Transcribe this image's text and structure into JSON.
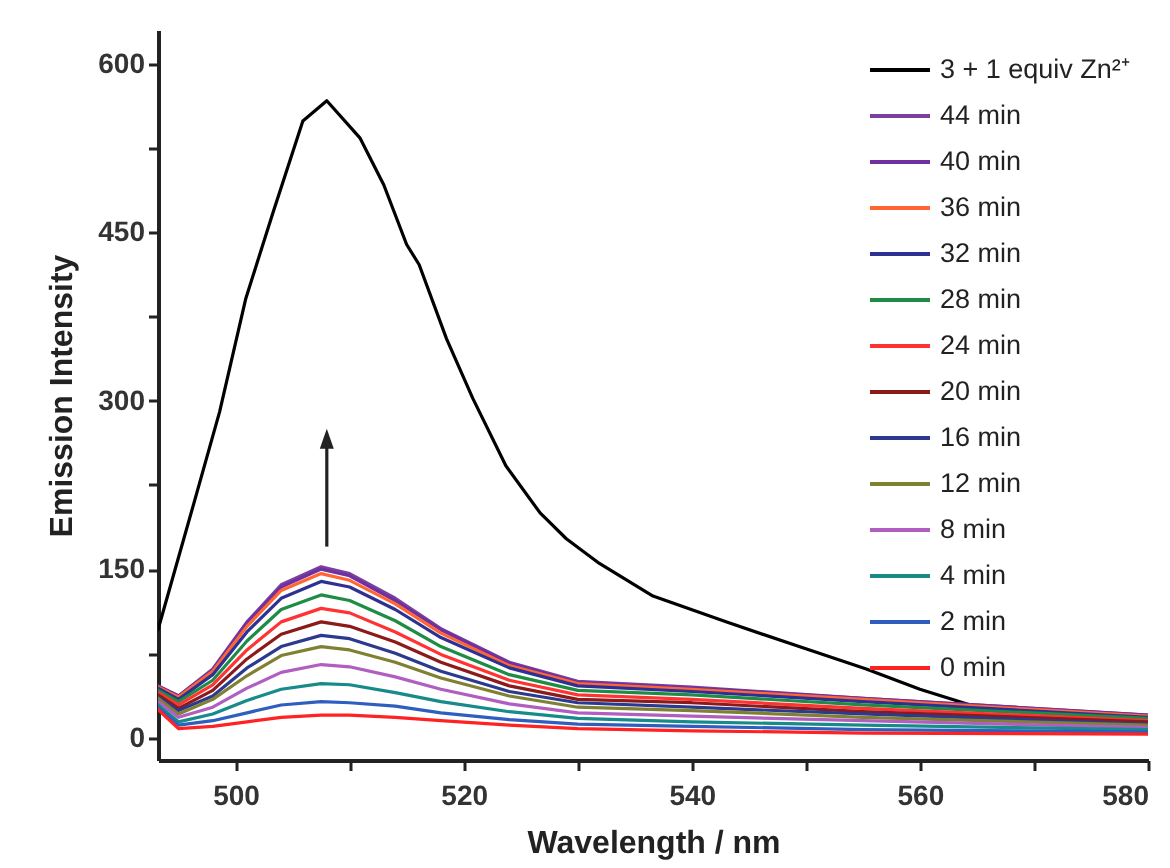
{
  "chart_data": {
    "type": "line",
    "xlabel": "Wavelength / nm",
    "ylabel": "Emission Intensity",
    "x": [
      493.2,
      495,
      498,
      501,
      504,
      507.5,
      510,
      514,
      518,
      524,
      530,
      540,
      555,
      580
    ],
    "xlim": [
      493.2,
      580
    ],
    "ylim": [
      -20,
      630
    ],
    "xticks": [
      500,
      {
        "value": 510,
        "label": null
      },
      520,
      {
        "value": 530,
        "label": null
      },
      540,
      {
        "value": 550,
        "label": null
      },
      560,
      {
        "value": 570,
        "label": null
      },
      580
    ],
    "yticks": [
      0,
      {
        "value": 75,
        "label": null
      },
      150,
      {
        "value": 225,
        "label": null
      },
      300,
      {
        "value": 375,
        "label": null
      },
      450,
      {
        "value": 525,
        "label": null
      },
      600
    ],
    "grid": false,
    "legend": "top right",
    "marker": "none",
    "line_style": "solid",
    "series": [
      {
        "name": "3  + 1 equiv Zn²⁺",
        "color": "#000000",
        "x": [
          493.2,
          496.3,
          498.6,
          500.9,
          503.3,
          505.9,
          508.0,
          510.9,
          513,
          515,
          516.1,
          518.5,
          520.8,
          523.7,
          526.7,
          529,
          531.9,
          536.6,
          543,
          550,
          555.3,
          560,
          564.7,
          569.4,
          579.3
        ],
        "values": [
          96,
          207,
          290,
          391,
          468,
          549,
          567,
          534,
          492,
          439,
          421,
          355,
          302,
          242,
          200,
          177,
          155,
          126,
          103,
          79,
          61,
          43,
          28,
          23,
          19
        ]
      },
      {
        "name": "44 min",
        "color": "#7b3f9e",
        "values": [
          46,
          37,
          61,
          103,
          136,
          152,
          146,
          124,
          97,
          67,
          50,
          45,
          35,
          20
        ]
      },
      {
        "name": "40 min",
        "color": "#7030a0",
        "values": [
          46,
          37,
          60,
          102,
          134,
          150,
          144,
          122,
          96,
          66,
          49,
          44,
          35,
          20
        ]
      },
      {
        "name": "36 min",
        "color": "#ff6633",
        "values": [
          45,
          36,
          59,
          99,
          131,
          146,
          140,
          119,
          93,
          64,
          48,
          43,
          34,
          19
        ]
      },
      {
        "name": "32 min",
        "color": "#2e3192",
        "values": [
          44,
          34,
          56,
          94,
          124,
          139,
          134,
          114,
          89,
          62,
          46,
          41,
          32,
          18
        ]
      },
      {
        "name": "28 min",
        "color": "#1e8c45",
        "values": [
          42,
          32,
          51,
          86,
          114,
          127,
          122,
          104,
          81,
          56,
          42,
          38,
          29,
          17
        ]
      },
      {
        "name": "24 min",
        "color": "#ff3333",
        "values": [
          40,
          29,
          47,
          78,
          103,
          115,
          111,
          94,
          74,
          51,
          38,
          34,
          26,
          15
        ]
      },
      {
        "name": "20 min",
        "color": "#8b1a1a",
        "values": [
          38,
          26,
          42,
          70,
          92,
          103,
          99,
          85,
          67,
          46,
          34,
          31,
          23,
          14
        ]
      },
      {
        "name": "16 min",
        "color": "#2b3a8f",
        "values": [
          36,
          24,
          37,
          62,
          81,
          91,
          88,
          75,
          59,
          41,
          31,
          27,
          21,
          12
        ]
      },
      {
        "name": "12 min",
        "color": "#808033",
        "values": [
          35,
          21,
          34,
          55,
          73,
          81,
          78,
          67,
          53,
          37,
          27,
          24,
          18,
          11
        ]
      },
      {
        "name": "  8 min",
        "color": "#b05fc0",
        "values": [
          32,
          18,
          27,
          44,
          58,
          65,
          63,
          54,
          43,
          30,
          22,
          19,
          15,
          9
        ]
      },
      {
        "name": "  4 min",
        "color": "#178a8a",
        "values": [
          29,
          14,
          21,
          33,
          43,
          48,
          47,
          40,
          32,
          23,
          17,
          14,
          11,
          7
        ]
      },
      {
        "name": "  2 min",
        "color": "#2e5fbf",
        "values": [
          27,
          11,
          15,
          22,
          29,
          32,
          31,
          28,
          22,
          16,
          12,
          10,
          7,
          5
        ]
      },
      {
        "name": "  0 min",
        "color": "#ff2222",
        "values": [
          25,
          8,
          10,
          14,
          18,
          20,
          20,
          18,
          15,
          11,
          8,
          6,
          4,
          3
        ]
      }
    ]
  }
}
